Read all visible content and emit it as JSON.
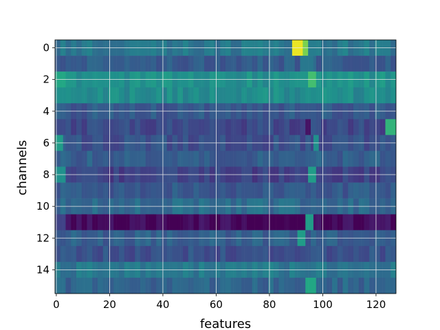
{
  "chart_data": {
    "type": "heatmap",
    "title": "",
    "xlabel": "features",
    "ylabel": "channels",
    "n_features": 128,
    "n_channels": 16,
    "xlim": [
      -0.5,
      127.5
    ],
    "ylim": [
      15.5,
      -0.5
    ],
    "x_ticks": [
      0,
      20,
      40,
      60,
      80,
      100,
      120
    ],
    "y_ticks": [
      0,
      2,
      4,
      6,
      8,
      10,
      12,
      14
    ],
    "colormap": "viridis",
    "grid": true,
    "value_range": [
      0,
      1
    ],
    "rows": [
      {
        "channel": 0,
        "base": 0.4,
        "hot": [
          [
            89,
            93,
            0.97
          ],
          [
            93,
            94,
            0.8
          ]
        ]
      },
      {
        "channel": 1,
        "base": 0.3,
        "hot": [
          [
            92,
            96,
            0.4
          ]
        ]
      },
      {
        "channel": 2,
        "base": 0.5,
        "hot": [
          [
            0,
            3,
            0.6
          ],
          [
            95,
            97,
            0.7
          ]
        ]
      },
      {
        "channel": 3,
        "base": 0.48,
        "hot": [
          [
            0,
            2,
            0.5
          ]
        ]
      },
      {
        "channel": 4,
        "base": 0.28,
        "hot": []
      },
      {
        "channel": 5,
        "base": 0.22,
        "hot": [
          [
            124,
            127,
            0.65
          ],
          [
            94,
            95,
            0.05
          ]
        ]
      },
      {
        "channel": 6,
        "base": 0.25,
        "hot": [
          [
            0,
            2,
            0.55
          ],
          [
            97,
            98,
            0.5
          ]
        ]
      },
      {
        "channel": 7,
        "base": 0.3,
        "hot": []
      },
      {
        "channel": 8,
        "base": 0.2,
        "hot": [
          [
            0,
            3,
            0.5
          ],
          [
            95,
            97,
            0.55
          ]
        ]
      },
      {
        "channel": 9,
        "base": 0.28,
        "hot": []
      },
      {
        "channel": 10,
        "base": 0.35,
        "hot": []
      },
      {
        "channel": 11,
        "base": 0.02,
        "hot": [
          [
            0,
            3,
            0.2
          ],
          [
            94,
            96,
            0.55
          ]
        ]
      },
      {
        "channel": 12,
        "base": 0.3,
        "hot": [
          [
            91,
            93,
            0.55
          ]
        ]
      },
      {
        "channel": 13,
        "base": 0.25,
        "hot": []
      },
      {
        "channel": 14,
        "base": 0.4,
        "hot": []
      },
      {
        "channel": 15,
        "base": 0.33,
        "hot": [
          [
            94,
            97,
            0.6
          ]
        ]
      }
    ]
  }
}
